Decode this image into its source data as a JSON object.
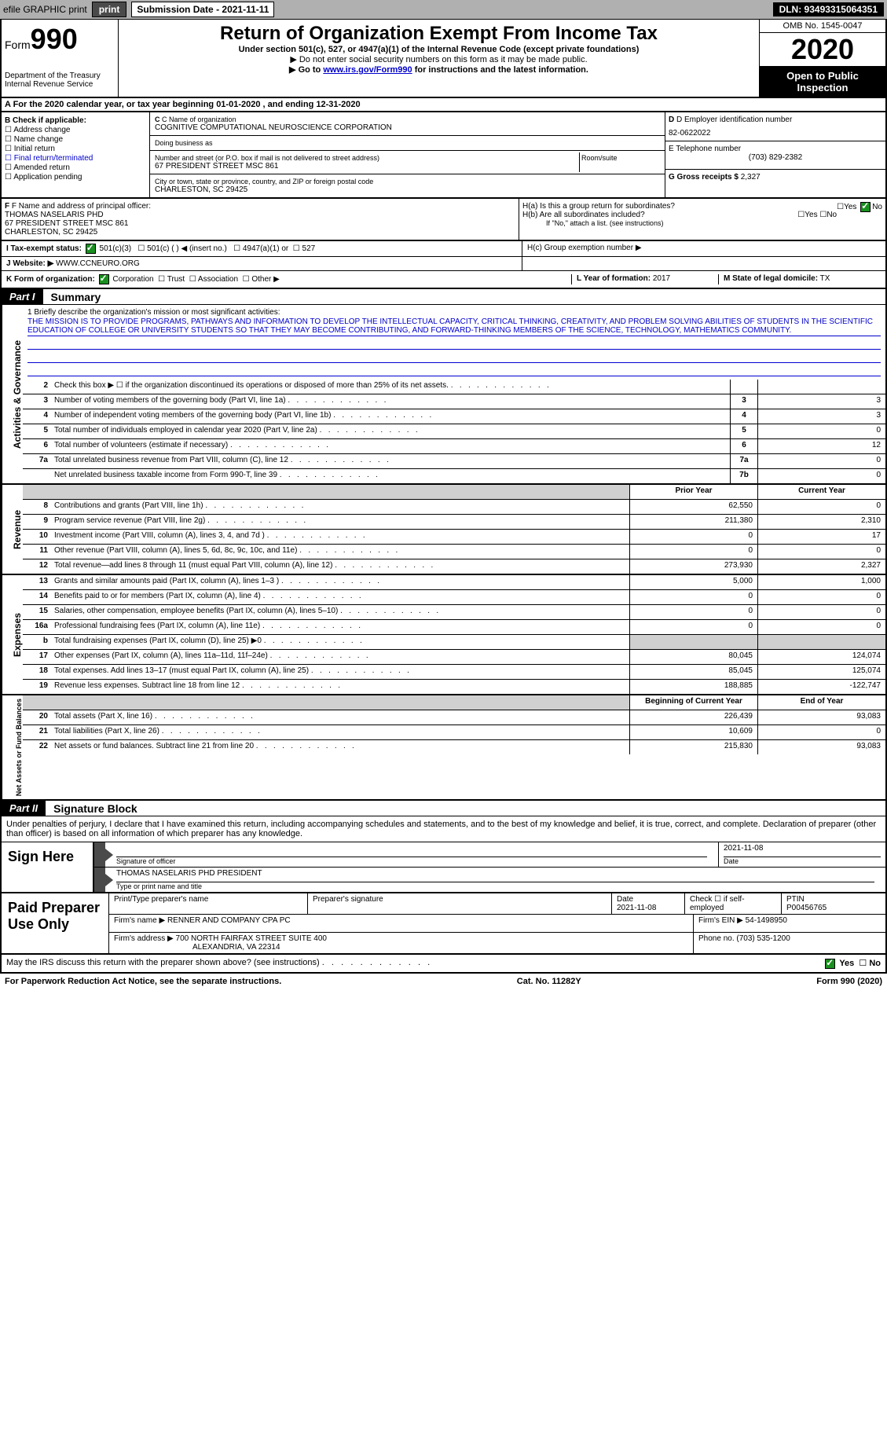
{
  "topbar": {
    "efile": "efile GRAPHIC print",
    "submission_label": "Submission Date - 2021-11-11",
    "dln": "DLN: 93493315064351"
  },
  "header": {
    "form_label": "Form",
    "form_num": "990",
    "dept": "Department of the Treasury",
    "irs": "Internal Revenue Service",
    "title": "Return of Organization Exempt From Income Tax",
    "sub1": "Under section 501(c), 527, or 4947(a)(1) of the Internal Revenue Code (except private foundations)",
    "sub2": "▶ Do not enter social security numbers on this form as it may be made public.",
    "sub3_prefix": "▶ Go to ",
    "sub3_link": "www.irs.gov/Form990",
    "sub3_suffix": " for instructions and the latest information.",
    "omb": "OMB No. 1545-0047",
    "year": "2020",
    "inspection": "Open to Public Inspection"
  },
  "row_a": "A For the 2020 calendar year, or tax year beginning 01-01-2020     , and ending 12-31-2020",
  "col_b": {
    "header": "B Check if applicable:",
    "items": [
      "Address change",
      "Name change",
      "Initial return",
      "Final return/terminated",
      "Amended return",
      "Application pending"
    ]
  },
  "col_c": {
    "name_label": "C Name of organization",
    "name": "COGNITIVE COMPUTATIONAL NEUROSCIENCE CORPORATION",
    "dba_label": "Doing business as",
    "street_label": "Number and street (or P.O. box if mail is not delivered to street address)",
    "room_label": "Room/suite",
    "street": "67 PRESIDENT STREET MSC 861",
    "city_label": "City or town, state or province, country, and ZIP or foreign postal code",
    "city": "CHARLESTON, SC  29425"
  },
  "col_d": {
    "ein_label": "D Employer identification number",
    "ein": "82-0622022",
    "phone_label": "E Telephone number",
    "phone": "(703) 829-2382",
    "receipts_label": "G Gross receipts $",
    "receipts": "2,327"
  },
  "sec_f": {
    "label": "F Name and address of principal officer:",
    "name": "THOMAS NASELARIS PHD",
    "street": "67 PRESIDENT STREET MSC 861",
    "city": "CHARLESTON, SC  29425"
  },
  "sec_h": {
    "ha": "H(a)  Is this a group return for subordinates?",
    "hb": "H(b)  Are all subordinates included?",
    "hb_note": "If \"No,\" attach a list. (see instructions)",
    "hc": "H(c)  Group exemption number ▶",
    "yes": "Yes",
    "no": "No"
  },
  "row_i": {
    "label": "I    Tax-exempt status:",
    "opt1": "501(c)(3)",
    "opt2": "501(c) (   ) ◀ (insert no.)",
    "opt3": "4947(a)(1) or",
    "opt4": "527"
  },
  "row_j": {
    "label": "J   Website: ▶",
    "value": "WWW.CCNEURO.ORG"
  },
  "row_k": {
    "label": "K Form of organization:",
    "opts": [
      "Corporation",
      "Trust",
      "Association",
      "Other ▶"
    ],
    "l_label": "L Year of formation:",
    "l_val": "2017",
    "m_label": "M State of legal domicile:",
    "m_val": "TX"
  },
  "part1": {
    "num": "Part I",
    "title": "Summary"
  },
  "mission": {
    "label": "1  Briefly describe the organization's mission or most significant activities:",
    "text": "THE MISSION IS TO PROVIDE PROGRAMS, PATHWAYS AND INFORMATION TO DEVELOP THE INTELLECTUAL CAPACITY, CRITICAL THINKING, CREATIVITY, AND PROBLEM SOLVING ABILITIES OF STUDENTS IN THE SCIENTIFIC EDUCATION OF COLLEGE OR UNIVERSITY STUDENTS SO THAT THEY MAY BECOME CONTRIBUTING, AND FORWARD-THINKING MEMBERS OF THE SCIENCE, TECHNOLOGY, MATHEMATICS COMMUNITY."
  },
  "gov_lines": [
    {
      "n": "2",
      "desc": "Check this box ▶ ☐ if the organization discontinued its operations or disposed of more than 25% of its net assets.",
      "box": "",
      "val": ""
    },
    {
      "n": "3",
      "desc": "Number of voting members of the governing body (Part VI, line 1a)",
      "box": "3",
      "val": "3"
    },
    {
      "n": "4",
      "desc": "Number of independent voting members of the governing body (Part VI, line 1b)",
      "box": "4",
      "val": "3"
    },
    {
      "n": "5",
      "desc": "Total number of individuals employed in calendar year 2020 (Part V, line 2a)",
      "box": "5",
      "val": "0"
    },
    {
      "n": "6",
      "desc": "Total number of volunteers (estimate if necessary)",
      "box": "6",
      "val": "12"
    },
    {
      "n": "7a",
      "desc": "Total unrelated business revenue from Part VIII, column (C), line 12",
      "box": "7a",
      "val": "0"
    },
    {
      "n": "",
      "desc": "Net unrelated business taxable income from Form 990-T, line 39",
      "box": "7b",
      "val": "0"
    }
  ],
  "col_headers": {
    "prior": "Prior Year",
    "current": "Current Year"
  },
  "revenue": [
    {
      "n": "8",
      "desc": "Contributions and grants (Part VIII, line 1h)",
      "p": "62,550",
      "c": "0"
    },
    {
      "n": "9",
      "desc": "Program service revenue (Part VIII, line 2g)",
      "p": "211,380",
      "c": "2,310"
    },
    {
      "n": "10",
      "desc": "Investment income (Part VIII, column (A), lines 3, 4, and 7d )",
      "p": "0",
      "c": "17"
    },
    {
      "n": "11",
      "desc": "Other revenue (Part VIII, column (A), lines 5, 6d, 8c, 9c, 10c, and 11e)",
      "p": "0",
      "c": "0"
    },
    {
      "n": "12",
      "desc": "Total revenue—add lines 8 through 11 (must equal Part VIII, column (A), line 12)",
      "p": "273,930",
      "c": "2,327"
    }
  ],
  "expenses": [
    {
      "n": "13",
      "desc": "Grants and similar amounts paid (Part IX, column (A), lines 1–3 )",
      "p": "5,000",
      "c": "1,000"
    },
    {
      "n": "14",
      "desc": "Benefits paid to or for members (Part IX, column (A), line 4)",
      "p": "0",
      "c": "0"
    },
    {
      "n": "15",
      "desc": "Salaries, other compensation, employee benefits (Part IX, column (A), lines 5–10)",
      "p": "0",
      "c": "0"
    },
    {
      "n": "16a",
      "desc": "Professional fundraising fees (Part IX, column (A), line 11e)",
      "p": "0",
      "c": "0"
    },
    {
      "n": "b",
      "desc": "Total fundraising expenses (Part IX, column (D), line 25) ▶0",
      "p": "",
      "c": ""
    },
    {
      "n": "17",
      "desc": "Other expenses (Part IX, column (A), lines 11a–11d, 11f–24e)",
      "p": "80,045",
      "c": "124,074"
    },
    {
      "n": "18",
      "desc": "Total expenses. Add lines 13–17 (must equal Part IX, column (A), line 25)",
      "p": "85,045",
      "c": "125,074"
    },
    {
      "n": "19",
      "desc": "Revenue less expenses. Subtract line 18 from line 12",
      "p": "188,885",
      "c": "-122,747"
    }
  ],
  "net_headers": {
    "begin": "Beginning of Current Year",
    "end": "End of Year"
  },
  "net": [
    {
      "n": "20",
      "desc": "Total assets (Part X, line 16)",
      "p": "226,439",
      "c": "93,083"
    },
    {
      "n": "21",
      "desc": "Total liabilities (Part X, line 26)",
      "p": "10,609",
      "c": "0"
    },
    {
      "n": "22",
      "desc": "Net assets or fund balances. Subtract line 21 from line 20",
      "p": "215,830",
      "c": "93,083"
    }
  ],
  "part2": {
    "num": "Part II",
    "title": "Signature Block"
  },
  "sig": {
    "decl": "Under penalties of perjury, I declare that I have examined this return, including accompanying schedules and statements, and to the best of my knowledge and belief, it is true, correct, and complete. Declaration of preparer (other than officer) is based on all information of which preparer has any knowledge.",
    "sign_here": "Sign Here",
    "sig_label": "Signature of officer",
    "date_label": "Date",
    "sig_date": "2021-11-08",
    "name": "THOMAS NASELARIS PHD  PRESIDENT",
    "name_label": "Type or print name and title"
  },
  "prep": {
    "label": "Paid Preparer Use Only",
    "name_label": "Print/Type preparer's name",
    "sig_label": "Preparer's signature",
    "date_label": "Date",
    "date": "2021-11-08",
    "check_label": "Check ☐ if self-employed",
    "ptin_label": "PTIN",
    "ptin": "P00456765",
    "firm_name_label": "Firm's name   ▶",
    "firm_name": "RENNER AND COMPANY CPA PC",
    "firm_ein_label": "Firm's EIN ▶",
    "firm_ein": "54-1498950",
    "firm_addr_label": "Firm's address ▶",
    "firm_addr1": "700 NORTH FAIRFAX STREET SUITE 400",
    "firm_addr2": "ALEXANDRIA, VA  22314",
    "phone_label": "Phone no.",
    "phone": "(703) 535-1200"
  },
  "may_irs": "May the IRS discuss this return with the preparer shown above? (see instructions)",
  "footer": {
    "left": "For Paperwork Reduction Act Notice, see the separate instructions.",
    "mid": "Cat. No. 11282Y",
    "right": "Form 990 (2020)"
  },
  "labels": {
    "vert_gov": "Activities & Governance",
    "vert_rev": "Revenue",
    "vert_exp": "Expenses",
    "vert_net": "Net Assets or Fund Balances"
  }
}
